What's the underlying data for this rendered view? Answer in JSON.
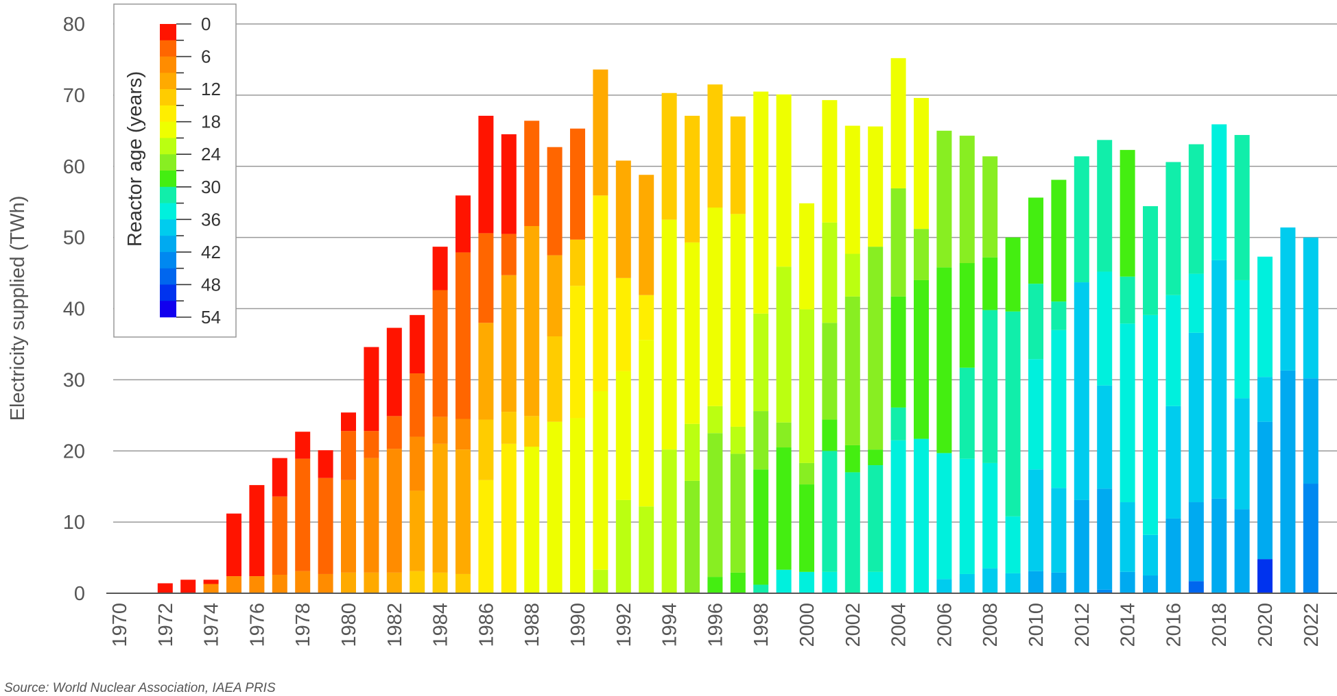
{
  "chart_data": {
    "type": "bar",
    "stacked": true,
    "ylabel": "Electricity supplied (TWh)",
    "ylim": [
      0,
      80
    ],
    "yticks": [
      0,
      10,
      20,
      30,
      40,
      50,
      60,
      70,
      80
    ],
    "grid": true,
    "x": [
      1970,
      1971,
      1972,
      1973,
      1974,
      1975,
      1976,
      1977,
      1978,
      1979,
      1980,
      1981,
      1982,
      1983,
      1984,
      1985,
      1986,
      1987,
      1988,
      1989,
      1990,
      1991,
      1992,
      1993,
      1994,
      1995,
      1996,
      1997,
      1998,
      1999,
      2000,
      2001,
      2002,
      2003,
      2004,
      2005,
      2006,
      2007,
      2008,
      2009,
      2010,
      2011,
      2012,
      2013,
      2014,
      2015,
      2016,
      2017,
      2018,
      2019,
      2020,
      2021,
      2022
    ],
    "xtick_labels": [
      "1970",
      "1972",
      "1974",
      "1976",
      "1978",
      "1980",
      "1982",
      "1984",
      "1986",
      "1988",
      "1990",
      "1992",
      "1994",
      "1996",
      "1998",
      "2000",
      "2002",
      "2004",
      "2006",
      "2008",
      "2010",
      "2012",
      "2014",
      "2016",
      "2018",
      "2020",
      "2022"
    ],
    "legend": {
      "title": "Reactor age (years)",
      "placement": "top-left",
      "tick_labels": [
        "0",
        "6",
        "12",
        "18",
        "24",
        "30",
        "36",
        "42",
        "48",
        "54"
      ],
      "bins": [
        0,
        3,
        6,
        9,
        12,
        15,
        18,
        21,
        24,
        27,
        30,
        33,
        36,
        39,
        42,
        45,
        48,
        51,
        54
      ],
      "colors": [
        "#ff1400",
        "#ff6600",
        "#ff8c00",
        "#ffaa00",
        "#ffcc00",
        "#ffee00",
        "#eeff00",
        "#bbff11",
        "#88ee22",
        "#44ee11",
        "#11eeaa",
        "#00f0dd",
        "#00ccee",
        "#00aaf0",
        "#0088f0",
        "#0066ee",
        "#0033ee",
        "#1100ee",
        "#8800ee",
        "#cc00ee"
      ]
    },
    "stacks": [
      [],
      [],
      [
        [
          0,
          1.4
        ]
      ],
      [
        [
          0,
          1.9
        ]
      ],
      [
        [
          2,
          1.3
        ],
        [
          0,
          0.6
        ]
      ],
      [
        [
          2,
          2.4
        ],
        [
          0,
          8.8
        ]
      ],
      [
        [
          2,
          2.4
        ],
        [
          0,
          12.8
        ]
      ],
      [
        [
          2,
          2.6
        ],
        [
          1,
          11.0
        ],
        [
          0,
          5.4
        ]
      ],
      [
        [
          2,
          3.1
        ],
        [
          1,
          15.8
        ],
        [
          0,
          3.8
        ]
      ],
      [
        [
          2,
          2.7
        ],
        [
          1,
          13.5
        ],
        [
          0,
          3.9
        ]
      ],
      [
        [
          3,
          2.9
        ],
        [
          2,
          13.0
        ],
        [
          1,
          6.9
        ],
        [
          0,
          2.6
        ]
      ],
      [
        [
          3,
          2.9
        ],
        [
          2,
          16.1
        ],
        [
          1,
          3.8
        ],
        [
          0,
          11.8
        ]
      ],
      [
        [
          3,
          2.9
        ],
        [
          2,
          17.4
        ],
        [
          1,
          4.6
        ],
        [
          0,
          12.4
        ]
      ],
      [
        [
          4,
          3.1
        ],
        [
          3,
          11.3
        ],
        [
          2,
          7.6
        ],
        [
          1,
          8.9
        ],
        [
          0,
          8.2
        ]
      ],
      [
        [
          4,
          2.9
        ],
        [
          3,
          18.1
        ],
        [
          2,
          3.8
        ],
        [
          1,
          17.8
        ],
        [
          0,
          6.1
        ]
      ],
      [
        [
          4,
          2.7
        ],
        [
          3,
          17.5
        ],
        [
          2,
          4.3
        ],
        [
          1,
          23.4
        ],
        [
          0,
          8.0
        ]
      ],
      [
        [
          5,
          15.9
        ],
        [
          4,
          8.5
        ],
        [
          3,
          13.6
        ],
        [
          1,
          12.6
        ],
        [
          0,
          16.5
        ]
      ],
      [
        [
          5,
          21.0
        ],
        [
          4,
          4.5
        ],
        [
          3,
          19.2
        ],
        [
          1,
          5.8
        ],
        [
          0,
          14.0
        ]
      ],
      [
        [
          6,
          20.6
        ],
        [
          4,
          4.3
        ],
        [
          3,
          26.7
        ],
        [
          1,
          14.8
        ]
      ],
      [
        [
          6,
          24.1
        ],
        [
          4,
          12.0
        ],
        [
          3,
          11.4
        ],
        [
          1,
          15.2
        ]
      ],
      [
        [
          6,
          24.6
        ],
        [
          5,
          18.6
        ],
        [
          4,
          6.5
        ],
        [
          1,
          15.6
        ]
      ],
      [
        [
          7,
          3.3
        ],
        [
          6,
          25.1
        ],
        [
          5,
          27.5
        ],
        [
          3,
          17.7
        ]
      ],
      [
        [
          7,
          13.1
        ],
        [
          6,
          18.1
        ],
        [
          5,
          13.1
        ],
        [
          3,
          16.5
        ]
      ],
      [
        [
          7,
          12.2
        ],
        [
          6,
          23.4
        ],
        [
          5,
          6.3
        ],
        [
          3,
          16.9
        ]
      ],
      [
        [
          7,
          20.2
        ],
        [
          6,
          32.3
        ],
        [
          4,
          17.8
        ]
      ],
      [
        [
          8,
          15.8
        ],
        [
          7,
          8.0
        ],
        [
          6,
          25.5
        ],
        [
          4,
          17.8
        ]
      ],
      [
        [
          9,
          2.3
        ],
        [
          8,
          20.2
        ],
        [
          7,
          3.8
        ],
        [
          6,
          27.9
        ],
        [
          4,
          17.3
        ]
      ],
      [
        [
          9,
          2.9
        ],
        [
          8,
          16.7
        ],
        [
          7,
          3.8
        ],
        [
          6,
          29.9
        ],
        [
          4,
          13.7
        ]
      ],
      [
        [
          10,
          1.2
        ],
        [
          9,
          16.2
        ],
        [
          8,
          8.2
        ],
        [
          7,
          13.7
        ],
        [
          6,
          31.2
        ]
      ],
      [
        [
          11,
          3.3
        ],
        [
          9,
          17.2
        ],
        [
          8,
          3.5
        ],
        [
          7,
          21.9
        ],
        [
          6,
          24.2
        ]
      ],
      [
        [
          11,
          3.0
        ],
        [
          9,
          12.3
        ],
        [
          8,
          3.0
        ],
        [
          7,
          21.6
        ],
        [
          6,
          14.9
        ]
      ],
      [
        [
          11,
          3.0
        ],
        [
          10,
          17.0
        ],
        [
          9,
          4.4
        ],
        [
          8,
          13.6
        ],
        [
          7,
          14.1
        ],
        [
          6,
          17.2
        ]
      ],
      [
        [
          10,
          17.0
        ],
        [
          9,
          3.8
        ],
        [
          8,
          20.9
        ],
        [
          7,
          6.0
        ],
        [
          6,
          18.0
        ]
      ],
      [
        [
          11,
          3.0
        ],
        [
          10,
          15.0
        ],
        [
          9,
          2.2
        ],
        [
          8,
          28.5
        ],
        [
          6,
          16.9
        ]
      ],
      [
        [
          11,
          21.5
        ],
        [
          10,
          4.6
        ],
        [
          9,
          15.6
        ],
        [
          8,
          15.2
        ],
        [
          6,
          18.3
        ]
      ],
      [
        [
          11,
          21.7
        ],
        [
          9,
          22.3
        ],
        [
          8,
          7.2
        ],
        [
          6,
          18.4
        ]
      ],
      [
        [
          12,
          2.0
        ],
        [
          11,
          17.7
        ],
        [
          9,
          26.1
        ],
        [
          8,
          19.2
        ]
      ],
      [
        [
          12,
          2.7
        ],
        [
          11,
          16.2
        ],
        [
          10,
          12.8
        ],
        [
          9,
          14.7
        ],
        [
          8,
          17.9
        ]
      ],
      [
        [
          12,
          3.5
        ],
        [
          11,
          14.8
        ],
        [
          10,
          21.5
        ],
        [
          9,
          7.4
        ],
        [
          8,
          14.2
        ]
      ],
      [
        [
          12,
          2.8
        ],
        [
          11,
          8.0
        ],
        [
          10,
          28.8
        ],
        [
          9,
          10.4
        ]
      ],
      [
        [
          13,
          3.1
        ],
        [
          12,
          14.3
        ],
        [
          11,
          15.5
        ],
        [
          10,
          10.6
        ],
        [
          9,
          12.1
        ]
      ],
      [
        [
          13,
          2.9
        ],
        [
          12,
          11.9
        ],
        [
          11,
          22.2
        ],
        [
          10,
          4.0
        ],
        [
          9,
          17.1
        ]
      ],
      [
        [
          13,
          13.1
        ],
        [
          12,
          30.6
        ],
        [
          10,
          17.7
        ]
      ],
      [
        [
          14,
          0.5
        ],
        [
          13,
          14.2
        ],
        [
          12,
          14.5
        ],
        [
          11,
          16.0
        ],
        [
          10,
          18.5
        ]
      ],
      [
        [
          13,
          3.0
        ],
        [
          12,
          9.8
        ],
        [
          11,
          25.1
        ],
        [
          10,
          6.6
        ],
        [
          9,
          17.8
        ]
      ],
      [
        [
          13,
          2.5
        ],
        [
          12,
          5.7
        ],
        [
          11,
          30.9
        ],
        [
          10,
          15.3
        ]
      ],
      [
        [
          13,
          10.5
        ],
        [
          12,
          15.8
        ],
        [
          11,
          15.6
        ],
        [
          10,
          18.7
        ]
      ],
      [
        [
          15,
          1.7
        ],
        [
          13,
          11.1
        ],
        [
          12,
          23.8
        ],
        [
          11,
          8.3
        ],
        [
          10,
          18.2
        ]
      ],
      [
        [
          13,
          13.3
        ],
        [
          12,
          33.5
        ],
        [
          11,
          19.1
        ]
      ],
      [
        [
          13,
          11.8
        ],
        [
          12,
          15.6
        ],
        [
          11,
          16.6
        ],
        [
          10,
          20.4
        ]
      ],
      [
        [
          16,
          4.8
        ],
        [
          13,
          19.3
        ],
        [
          12,
          6.3
        ],
        [
          11,
          16.9
        ]
      ],
      [
        [
          13,
          31.3
        ],
        [
          12,
          20.1
        ]
      ],
      [
        [
          14,
          15.4
        ],
        [
          13,
          14.8
        ],
        [
          12,
          19.8
        ]
      ]
    ]
  },
  "source_note": "Source: World Nuclear Association, IAEA PRIS"
}
